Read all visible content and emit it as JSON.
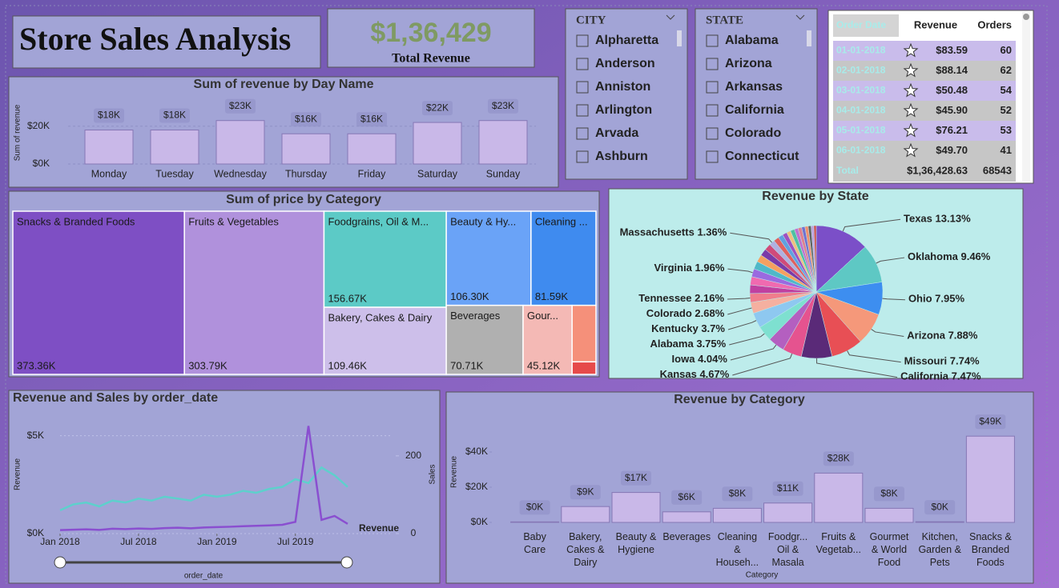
{
  "title": "Store Sales Analysis",
  "kpi": {
    "value": "$1,36,429",
    "label": "Total Revenue"
  },
  "slicers": [
    {
      "header": "CITY",
      "items": [
        "Alpharetta",
        "Anderson",
        "Anniston",
        "Arlington",
        "Arvada",
        "Ashburn"
      ]
    },
    {
      "header": "STATE",
      "items": [
        "Alabama",
        "Arizona",
        "Arkansas",
        "California",
        "Colorado",
        "Connecticut"
      ]
    }
  ],
  "table": {
    "header": [
      "Order Date",
      "Revenue",
      "Orders"
    ],
    "rows": [
      [
        "01-01-2018",
        "$83.59",
        60
      ],
      [
        "02-01-2018",
        "$88.14",
        62
      ],
      [
        "03-01-2018",
        "$50.48",
        54
      ],
      [
        "04-01-2018",
        "$45.90",
        52
      ],
      [
        "05-01-2018",
        "$76.21",
        53
      ],
      [
        "06-01-2018",
        "$49.70",
        41
      ]
    ],
    "total": [
      "Total",
      "$1,36,428.63",
      68543
    ]
  },
  "chart_data": [
    {
      "type": "bar",
      "title": "Sum of revenue by Day Name",
      "y_label": "Sum of revenue",
      "categories": [
        "Monday",
        "Tuesday",
        "Wednesday",
        "Thursday",
        "Friday",
        "Saturday",
        "Sunday"
      ],
      "values": [
        18000,
        18000,
        23000,
        16000,
        16000,
        22000,
        23000
      ],
      "value_labels": [
        "$18K",
        "$18K",
        "$23K",
        "$16K",
        "$16K",
        "$22K",
        "$23K"
      ],
      "color": "#c9b8e8",
      "ylim": [
        0,
        25000
      ],
      "yticks": [
        {
          "value": 0,
          "label": "$0K"
        },
        {
          "value": 20000,
          "label": "$20K"
        }
      ],
      "grid": true
    },
    {
      "type": "treemap",
      "title": "Sum of price by Category",
      "categories": [
        "Snacks & Branded Foods",
        "Fruits & Vegetables",
        "Foodgrains, Oil & M...",
        "Bakery, Cakes & Dairy",
        "Beauty & Hy...",
        "Cleaning ...",
        "Beverages",
        "Gour...",
        null,
        null
      ],
      "values": [
        373360,
        303790,
        156670,
        109460,
        106300,
        81590,
        70710,
        45120,
        18000,
        4000
      ],
      "value_labels": [
        "373.36K",
        "303.79K",
        "156.67K",
        "109.46K",
        "106.30K",
        "81.59K",
        "70.71K",
        "45.12K",
        null,
        null
      ],
      "colors": [
        "#7e4fc4",
        "#b091dc",
        "#5ccac6",
        "#cdbfea",
        "#6aa3f7",
        "#3f8bef",
        "#b0b0b0",
        "#f4b9b5",
        "#f5907a",
        "#e64a4a"
      ]
    },
    {
      "type": "pie",
      "title": "Revenue by State",
      "categories": [
        "Texas",
        "Oklahoma",
        "Ohio",
        "Arizona",
        "Missouri",
        "California",
        "Kansas",
        "Iowa",
        "Alabama",
        "Kentucky",
        "Colorado",
        "Tennessee",
        null,
        null,
        "Virginia",
        null,
        null,
        null,
        null,
        "Massachusetts",
        null,
        null,
        null,
        null,
        null,
        null,
        null,
        null,
        null,
        null,
        null,
        null
      ],
      "values": [
        13.13,
        9.46,
        7.95,
        7.88,
        7.74,
        7.47,
        4.67,
        4.04,
        3.75,
        3.7,
        2.68,
        2.16,
        2.1,
        2.0,
        1.96,
        1.9,
        1.8,
        1.7,
        1.6,
        1.36,
        1.3,
        1.2,
        1.1,
        1.0,
        1.0,
        0.9,
        0.9,
        0.8,
        0.8,
        0.7,
        0.65,
        0.6
      ],
      "value_labels": [
        "13.13%",
        "9.46%",
        "7.95%",
        "7.88%",
        "7.74%",
        "7.47%",
        "4.67%",
        "4.04%",
        "3.75%",
        "3.7%",
        "2.68%",
        "2.16%",
        null,
        null,
        "1.96%",
        null,
        null,
        null,
        null,
        "1.36%",
        null,
        null,
        null,
        null,
        null,
        null,
        null,
        null,
        null,
        null,
        null,
        null
      ],
      "colors": [
        "#7b4fc8",
        "#5ec8c4",
        "#3d8ef0",
        "#f5987a",
        "#e84f55",
        "#5a2a78",
        "#e5538f",
        "#b45fc0",
        "#7ee0d0",
        "#8ec8f0",
        "#f5b0a0",
        "#f07d8c",
        "#c040a0",
        "#f06ab0",
        "#9a6ae0",
        "#4fb8c8",
        "#f5a060",
        "#7a3aa8",
        "#d04a7a",
        "#b0b0e0",
        "#e06060",
        "#60a0e0",
        "#a050c0",
        "#f0c080",
        "#50c0a0",
        "#c070d0",
        "#e08090",
        "#7070d0",
        "#f09070",
        "#606060",
        "#c0a0e0",
        "#d05050"
      ]
    },
    {
      "type": "line",
      "title": "Revenue and Sales by order_date",
      "x_label": "order_date",
      "y_label": "Revenue",
      "x": [
        "2018-01",
        "2018-02",
        "2018-03",
        "2018-04",
        "2018-05",
        "2018-06",
        "2018-07",
        "2018-08",
        "2018-09",
        "2018-10",
        "2018-11",
        "2018-12",
        "2019-01",
        "2019-02",
        "2019-03",
        "2019-04",
        "2019-05",
        "2019-06",
        "2019-07",
        "2019-08",
        "2019-09",
        "2019-10",
        "2019-11"
      ],
      "xlim": [
        "2018-01",
        "2019-11"
      ],
      "xticks": [
        {
          "value": "2018-01",
          "label": "Jan 2018"
        },
        {
          "value": "2018-07",
          "label": "Jul 2018"
        },
        {
          "value": "2019-01",
          "label": "Jan 2019"
        },
        {
          "value": "2019-07",
          "label": "Jul 2019"
        }
      ],
      "series": [
        {
          "name": "Revenue",
          "color": "#8a4fd0",
          "values": [
            180,
            200,
            220,
            190,
            250,
            230,
            260,
            240,
            280,
            300,
            270,
            310,
            330,
            350,
            380,
            400,
            420,
            450,
            600,
            5500,
            700,
            900,
            500
          ]
        },
        {
          "name": "Sales",
          "color": "#5ed0cc",
          "axis": "y2",
          "values": [
            60,
            75,
            80,
            70,
            85,
            80,
            90,
            85,
            95,
            90,
            85,
            100,
            95,
            100,
            110,
            105,
            115,
            120,
            140,
            130,
            170,
            150,
            120
          ]
        }
      ],
      "ylim": [
        0,
        5600
      ],
      "yticks": [
        {
          "value": 0,
          "label": "$0K"
        },
        {
          "value": 5000,
          "label": "$5K"
        }
      ],
      "y2lim": [
        0,
        282
      ],
      "y2ticks": [
        0,
        200
      ],
      "grid": true
    },
    {
      "type": "bar",
      "title": "Revenue by Category",
      "y_label": "Revenue",
      "x_label": "Category",
      "categories": [
        "Baby Care",
        "Bakery, Cakes & Dairy",
        "Beauty & Hygiene",
        "Beverages",
        "Cleaning & Househ...",
        "Foodgr... Oil & Masala",
        "Fruits & Vegetab...",
        "Gourmet & World Food",
        "Kitchen, Garden & Pets",
        "Snacks & Branded Foods"
      ],
      "values": [
        300,
        9000,
        17000,
        6000,
        8000,
        11000,
        28000,
        8000,
        400,
        49000
      ],
      "value_labels": [
        "$0K",
        "$9K",
        "$17K",
        "$6K",
        "$8K",
        "$11K",
        "$28K",
        "$8K",
        "$0K",
        "$49K"
      ],
      "color": "#c9b8e8",
      "ylim": [
        0,
        50000
      ],
      "yticks": [
        {
          "value": 0,
          "label": "$0K"
        },
        {
          "value": 20000,
          "label": "$20K"
        },
        {
          "value": 40000,
          "label": "$40K"
        }
      ],
      "grid": false
    }
  ]
}
